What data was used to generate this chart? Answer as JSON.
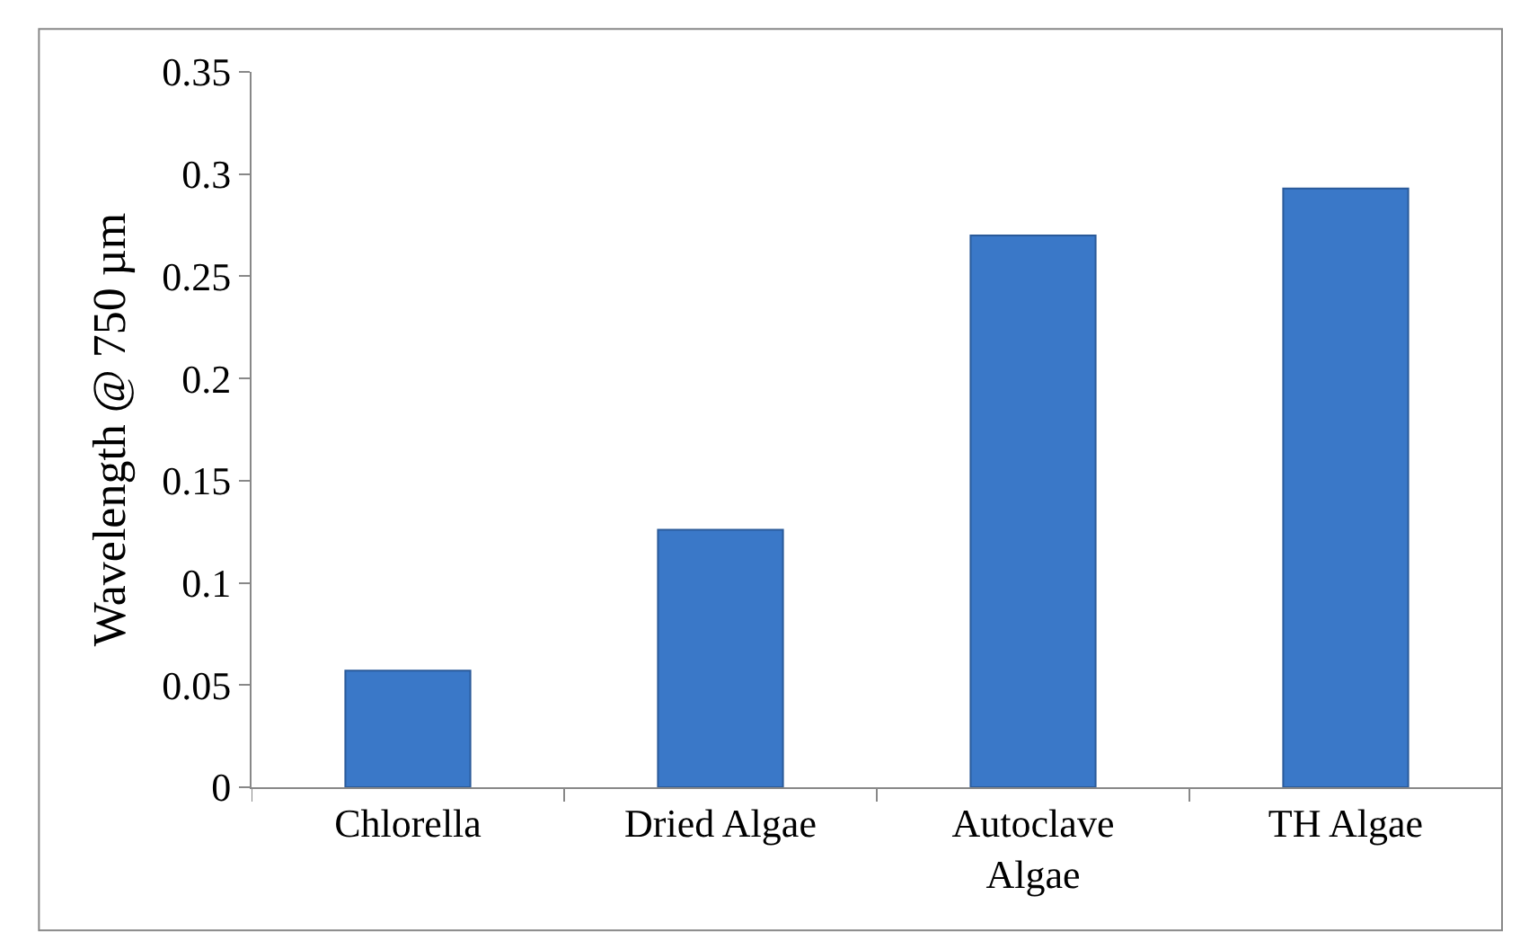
{
  "chart_data": {
    "type": "bar",
    "ylabel": "Wavelength @ 750 µm",
    "categories": [
      "Chlorella",
      "Dried Algae",
      "Autoclave\nAlgae",
      "TH Algae"
    ],
    "values": [
      0.057,
      0.126,
      0.27,
      0.293
    ],
    "color": "#3a78c8",
    "ylim": [
      0,
      0.35
    ],
    "yticks": [
      0,
      0.05,
      0.1,
      0.15,
      0.2,
      0.25,
      0.3,
      0.35
    ],
    "grid": false
  }
}
